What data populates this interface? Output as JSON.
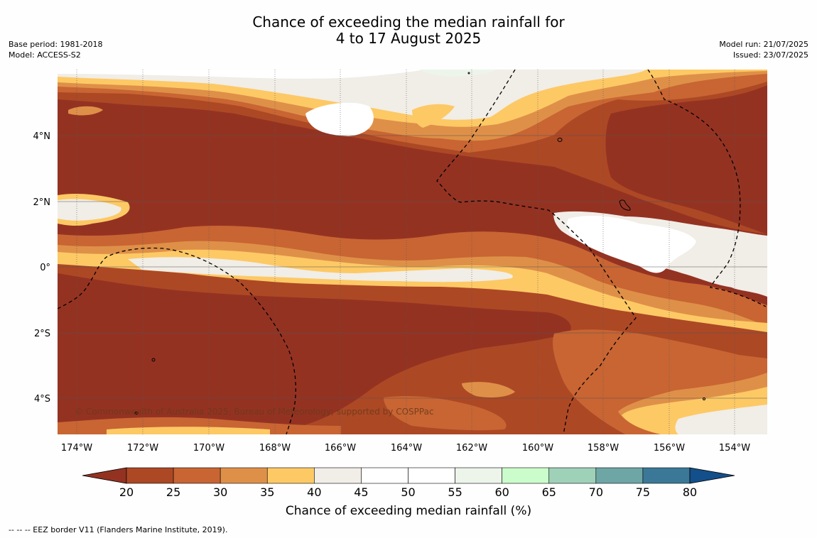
{
  "title": {
    "line1": "Chance of exceeding the median rainfall for",
    "line2": "4 to 17 August 2025"
  },
  "meta_left": {
    "base_period": "Base period: 1981-2018",
    "model": "Model: ACCESS-S2"
  },
  "meta_right": {
    "model_run": "Model run: 21/07/2025",
    "issued": "Issued: 23/07/2025"
  },
  "map": {
    "lat_labels": [
      "4°N",
      "2°N",
      "0°",
      "2°S",
      "4°S"
    ],
    "lon_labels": [
      "174°W",
      "172°W",
      "170°W",
      "168°W",
      "166°W",
      "164°W",
      "162°W",
      "160°W",
      "158°W",
      "156°W",
      "154°W"
    ],
    "copyright": "© Commonwealth of Australia 2025, Bureau of Meteorology; supported by COSPPac"
  },
  "colorbar": {
    "title": "Chance of exceeding median rainfall (%)",
    "ticks": [
      "20",
      "25",
      "30",
      "35",
      "40",
      "45",
      "50",
      "55",
      "60",
      "65",
      "70",
      "75",
      "80"
    ],
    "colors": [
      "#943222",
      "#ad4825",
      "#c86533",
      "#df9048",
      "#fdc965",
      "#f1ede7",
      "#ffffff",
      "#ffffff",
      "#edf5eb",
      "#cbfccb",
      "#9fd1b9",
      "#6ea6a6",
      "#3b7898",
      "#134f8a"
    ]
  },
  "footnote": "--  --  -- EEZ border V11 (Flanders Marine Institute, 2019)."
}
